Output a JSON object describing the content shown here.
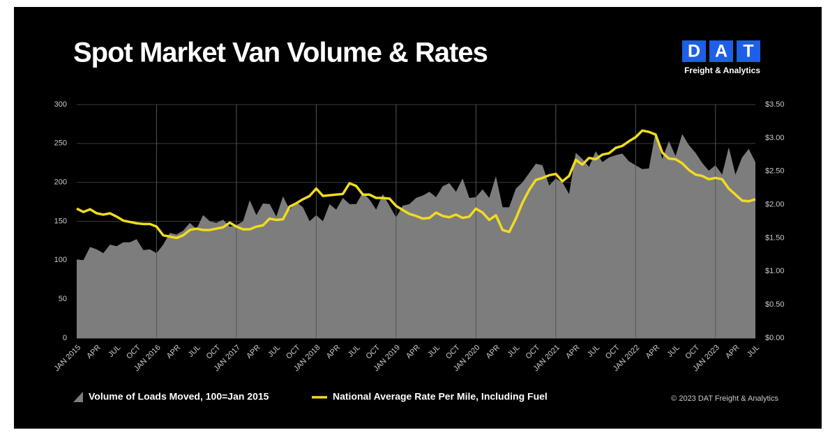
{
  "logo_letters": [
    "D",
    "A",
    "T"
  ],
  "logo_subtitle": "Freight & Analytics",
  "copyright": "© 2023 DAT Freight & Analytics",
  "chart_data": {
    "type": "combo",
    "title": "Spot Market Van Volume & Rates",
    "categories": [
      "JAN 2015",
      null,
      null,
      "APR",
      null,
      null,
      "JUL",
      null,
      null,
      "OCT",
      null,
      null,
      "JAN 2016",
      null,
      null,
      "APR",
      null,
      null,
      "JUL",
      null,
      null,
      "OCT",
      null,
      null,
      "JAN 2017",
      null,
      null,
      "APR",
      null,
      null,
      "JUL",
      null,
      null,
      "OCT",
      null,
      null,
      "JAN 2018",
      null,
      null,
      "APR",
      null,
      null,
      "JUL",
      null,
      null,
      "OCT",
      null,
      null,
      "JAN 2019",
      null,
      null,
      "APR",
      null,
      null,
      "JUL",
      null,
      null,
      "OCT",
      null,
      null,
      "JAN 2020",
      null,
      null,
      "APR",
      null,
      null,
      "JUL",
      null,
      null,
      "OCT",
      null,
      null,
      "JAN 2021",
      null,
      null,
      "APR",
      null,
      null,
      "JUL",
      null,
      null,
      "OCT",
      null,
      null,
      "JAN 2022",
      null,
      null,
      "APR",
      null,
      null,
      "JUL",
      null,
      null,
      "OCT",
      null,
      null,
      "JAN 2023",
      null,
      null,
      "APR",
      null,
      null,
      "JUL"
    ],
    "series": [
      {
        "name": "Volume of Loads Moved, 100=Jan 2015",
        "type": "area",
        "color": "#7d7d7d",
        "values": [
          101,
          100,
          117,
          114,
          109,
          120,
          118,
          123,
          123,
          127,
          113,
          114,
          109,
          120,
          135,
          133,
          138,
          148,
          140,
          158,
          150,
          148,
          152,
          143,
          145,
          150,
          177,
          158,
          173,
          172,
          156,
          182,
          165,
          175,
          168,
          150,
          158,
          150,
          172,
          165,
          180,
          172,
          172,
          187,
          178,
          165,
          185,
          170,
          155,
          170,
          172,
          180,
          183,
          188,
          181,
          195,
          199,
          188,
          205,
          180,
          181,
          191,
          180,
          208,
          168,
          168,
          192,
          200,
          212,
          224,
          222,
          196,
          205,
          200,
          185,
          238,
          230,
          220,
          240,
          226,
          232,
          235,
          237,
          227,
          222,
          217,
          218,
          265,
          230,
          253,
          234,
          262,
          248,
          238,
          225,
          215,
          222,
          210,
          245,
          210,
          232,
          243,
          226
        ]
      },
      {
        "name": "National Average Rate Per Mile, Including Fuel",
        "type": "line",
        "axis": "y2",
        "color": "#f0dc1e",
        "values": [
          1.94,
          1.89,
          1.93,
          1.87,
          1.85,
          1.87,
          1.82,
          1.76,
          1.74,
          1.72,
          1.71,
          1.71,
          1.67,
          1.54,
          1.52,
          1.5,
          1.54,
          1.62,
          1.64,
          1.62,
          1.62,
          1.64,
          1.66,
          1.73,
          1.67,
          1.63,
          1.63,
          1.67,
          1.69,
          1.79,
          1.77,
          1.78,
          1.97,
          2.02,
          2.08,
          2.13,
          2.24,
          2.13,
          2.14,
          2.15,
          2.16,
          2.32,
          2.28,
          2.15,
          2.15,
          2.1,
          2.1,
          2.09,
          1.98,
          1.92,
          1.86,
          1.83,
          1.79,
          1.8,
          1.88,
          1.83,
          1.81,
          1.85,
          1.8,
          1.82,
          1.94,
          1.88,
          1.77,
          1.84,
          1.62,
          1.59,
          1.79,
          2.03,
          2.22,
          2.37,
          2.4,
          2.44,
          2.46,
          2.35,
          2.43,
          2.67,
          2.6,
          2.7,
          2.68,
          2.75,
          2.77,
          2.85,
          2.88,
          2.95,
          3.01,
          3.11,
          3.09,
          3.05,
          2.78,
          2.69,
          2.68,
          2.62,
          2.52,
          2.45,
          2.43,
          2.38,
          2.4,
          2.38,
          2.24,
          2.15,
          2.06,
          2.05,
          2.08
        ]
      }
    ],
    "ylim": [
      0,
      300
    ],
    "yticks": [
      0,
      50,
      100,
      150,
      200,
      250,
      300
    ],
    "y2lim": [
      0,
      3.5
    ],
    "y2ticks": [
      {
        "value": 0,
        "label": "$0.00"
      },
      {
        "value": 0.5,
        "label": "$0.50"
      },
      {
        "value": 1,
        "label": "$1.00"
      },
      {
        "value": 1.5,
        "label": "$1.50"
      },
      {
        "value": 2,
        "label": "$2.00"
      },
      {
        "value": 2.5,
        "label": "$2.50"
      },
      {
        "value": 3,
        "label": "$3.00"
      },
      {
        "value": 3.5,
        "label": "$3.50"
      }
    ],
    "grid": true
  }
}
